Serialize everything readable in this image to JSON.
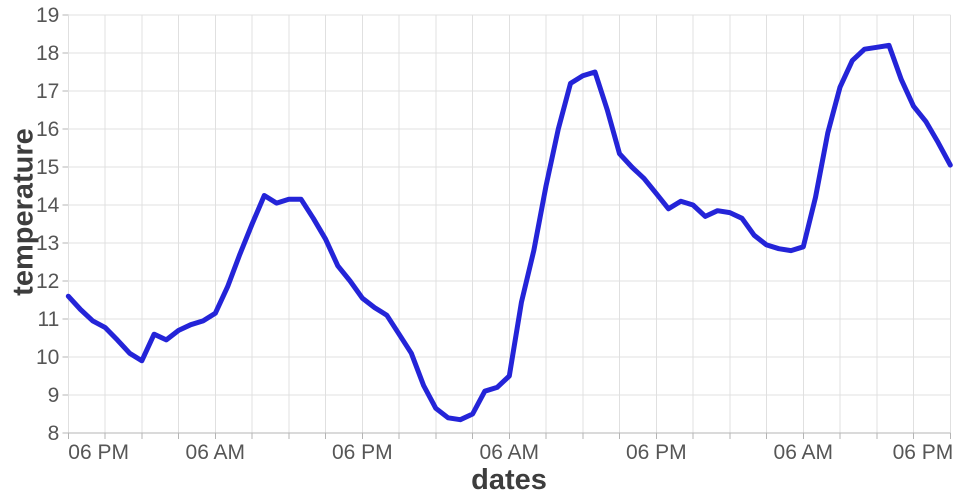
{
  "chart_data": {
    "type": "line",
    "title": "",
    "xlabel": "dates",
    "ylabel": "temperature",
    "ylim": [
      8,
      19
    ],
    "x_range": [
      0,
      72
    ],
    "y_ticks": [
      8,
      9,
      10,
      11,
      12,
      13,
      14,
      15,
      16,
      17,
      18,
      19
    ],
    "x_tick_labels": [
      "06 PM",
      "06 AM",
      "06 PM",
      "06 AM",
      "06 PM",
      "06 AM",
      "06 PM"
    ],
    "x_tick_positions": [
      0,
      12,
      24,
      36,
      48,
      60,
      72
    ],
    "x_minor_grid_step": 3,
    "grid": true,
    "legend": "none",
    "series": [
      {
        "name": "temperature",
        "color": "#2424d8",
        "x_step_hours": 1,
        "values": [
          11.6,
          11.25,
          10.95,
          10.78,
          10.45,
          10.1,
          9.9,
          10.6,
          10.45,
          10.7,
          10.85,
          10.95,
          11.15,
          11.85,
          12.7,
          13.5,
          14.25,
          14.05,
          14.15,
          14.15,
          13.65,
          13.1,
          12.4,
          12.0,
          11.55,
          11.3,
          11.1,
          10.6,
          10.1,
          9.25,
          8.65,
          8.4,
          8.35,
          8.5,
          9.1,
          9.2,
          9.5,
          11.45,
          12.8,
          14.5,
          16.0,
          17.2,
          17.4,
          17.5,
          16.5,
          15.35,
          15.0,
          14.7,
          14.3,
          13.9,
          14.1,
          14.0,
          13.7,
          13.85,
          13.8,
          13.65,
          13.2,
          12.95,
          12.85,
          12.8,
          12.9,
          14.2,
          15.9,
          17.1,
          17.8,
          18.1,
          18.15,
          18.2,
          17.3,
          16.6,
          16.2,
          15.65,
          15.05
        ]
      }
    ],
    "colors": {
      "line": "#2424d8",
      "grid": "#e0e0e0",
      "axis": "#b5b5b5",
      "tick_label": "#565656",
      "axis_title": "#3d3d3d",
      "background": "#ffffff"
    }
  }
}
